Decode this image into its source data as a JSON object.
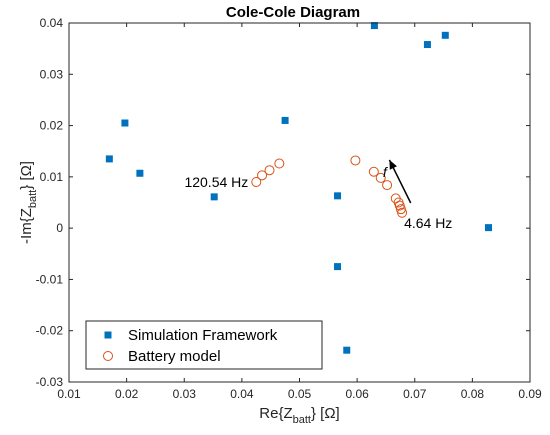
{
  "chart_data": {
    "type": "scatter",
    "title": "Cole-Cole Diagram",
    "xlabel": {
      "main": "Re{Z",
      "sub": "batt",
      "tail": "} [Ω]"
    },
    "ylabel": {
      "main": "-Im{Z",
      "sub": "batt",
      "tail": "} [Ω]"
    },
    "xlim": [
      0.01,
      0.09
    ],
    "ylim": [
      -0.03,
      0.04
    ],
    "xticks": [
      0.01,
      0.02,
      0.03,
      0.04,
      0.05,
      0.06,
      0.07,
      0.08,
      0.09
    ],
    "yticks": [
      -0.03,
      -0.02,
      -0.01,
      0,
      0.01,
      0.02,
      0.03,
      0.04
    ],
    "xtick_labels": [
      "0.01",
      "0.02",
      "0.03",
      "0.04",
      "0.05",
      "0.06",
      "0.07",
      "0.08",
      "0.09"
    ],
    "ytick_labels": [
      "-0.03",
      "-0.02",
      "-0.01",
      "0",
      "0.01",
      "0.02",
      "0.03",
      "0.04"
    ],
    "grid": false,
    "legend_position": "bottom-left",
    "series": [
      {
        "name": "Simulation Framework",
        "marker": "square",
        "color": "#0072BD",
        "points": [
          {
            "x": 0.017,
            "y": 0.0135
          },
          {
            "x": 0.0197,
            "y": 0.0205
          },
          {
            "x": 0.0223,
            "y": 0.0107
          },
          {
            "x": 0.0352,
            "y": 0.0061
          },
          {
            "x": 0.0475,
            "y": 0.021
          },
          {
            "x": 0.0566,
            "y": 0.0063
          },
          {
            "x": 0.0566,
            "y": -0.0075
          },
          {
            "x": 0.0582,
            "y": -0.0238
          },
          {
            "x": 0.063,
            "y": 0.0395
          },
          {
            "x": 0.0722,
            "y": 0.0358
          },
          {
            "x": 0.0753,
            "y": 0.0376
          },
          {
            "x": 0.0828,
            "y": 0.0001
          }
        ]
      },
      {
        "name": "Battery model",
        "marker": "circle",
        "color": "#D95319",
        "points": [
          {
            "x": 0.0425,
            "y": 0.009
          },
          {
            "x": 0.0435,
            "y": 0.0103
          },
          {
            "x": 0.0448,
            "y": 0.0113
          },
          {
            "x": 0.0465,
            "y": 0.0126
          },
          {
            "x": 0.0597,
            "y": 0.0132
          },
          {
            "x": 0.0629,
            "y": 0.011
          },
          {
            "x": 0.0641,
            "y": 0.0098
          },
          {
            "x": 0.0652,
            "y": 0.0084
          },
          {
            "x": 0.0667,
            "y": 0.0058
          },
          {
            "x": 0.0672,
            "y": 0.005
          },
          {
            "x": 0.0674,
            "y": 0.0044
          },
          {
            "x": 0.0676,
            "y": 0.0037
          },
          {
            "x": 0.0678,
            "y": 0.003
          }
        ]
      }
    ],
    "annotations": [
      {
        "text": "120.54 Hz",
        "x": 0.0425,
        "y": 0.009,
        "placement": "left"
      },
      {
        "text": "4.64 Hz",
        "x": 0.0678,
        "y": 0.0,
        "placement": "right"
      },
      {
        "text": "f",
        "x": 0.0648,
        "y": 0.01,
        "placement": "arrow-label"
      }
    ],
    "arrow": {
      "from": {
        "x": 0.0693,
        "y": 0.0049
      },
      "to": {
        "x": 0.0656,
        "y": 0.0133
      }
    }
  }
}
